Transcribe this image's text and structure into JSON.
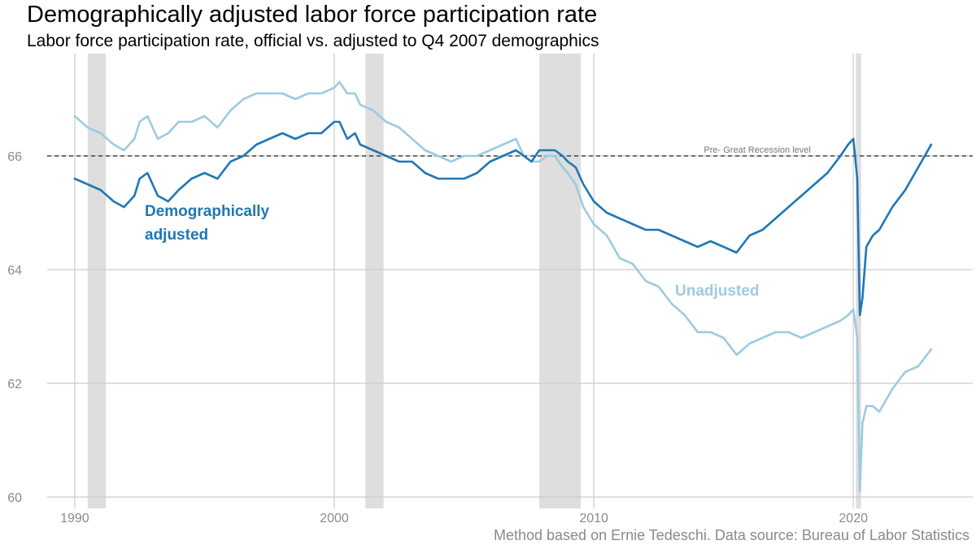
{
  "title": "Demographically adjusted labor force participation rate",
  "subtitle": "Labor force participation rate, official vs. adjusted to Q4 2007 demographics",
  "caption": "Method based on Ernie Tedeschi. Data source: Bureau of Labor Statistics",
  "colors": {
    "adjusted": "#1f77b4",
    "unadjusted": "#9ecae1",
    "recession": "#dedede",
    "grid": "#cccccc",
    "reference": "#222222"
  },
  "chart_data": {
    "type": "line",
    "title": "Demographically adjusted labor force participation rate",
    "subtitle": "Labor force participation rate, official vs. adjusted to Q4 2007 demographics",
    "xlabel": "",
    "ylabel": "",
    "xlim": [
      1989.0,
      2024.6
    ],
    "ylim": [
      59.8,
      67.8
    ],
    "x_ticks": [
      1990,
      2000,
      2010,
      2020
    ],
    "y_ticks": [
      60,
      62,
      64,
      66
    ],
    "grid": true,
    "legend": "direct labels",
    "recessions": [
      [
        1990.5,
        1991.2
      ],
      [
        2001.2,
        2001.9
      ],
      [
        2007.9,
        2009.5
      ],
      [
        2020.1,
        2020.3
      ]
    ],
    "reference_line": {
      "y": 66.0,
      "label": "Pre- Great Recession level"
    },
    "series": [
      {
        "name": "Demographically adjusted",
        "label_lines": [
          "Demographically",
          "adjusted"
        ],
        "color": "#1f77b4",
        "x": [
          1990.0,
          1990.5,
          1991.0,
          1991.5,
          1991.9,
          1992.3,
          1992.5,
          1992.8,
          1993.2,
          1993.6,
          1994.0,
          1994.5,
          1995.0,
          1995.5,
          1996.0,
          1996.5,
          1997.0,
          1997.5,
          1998.0,
          1998.5,
          1999.0,
          1999.5,
          2000.0,
          2000.2,
          2000.5,
          2000.8,
          2001.0,
          2001.5,
          2002.0,
          2002.5,
          2003.0,
          2003.5,
          2004.0,
          2004.5,
          2005.0,
          2005.5,
          2006.0,
          2006.5,
          2007.0,
          2007.3,
          2007.6,
          2007.9,
          2008.2,
          2008.5,
          2008.8,
          2009.0,
          2009.3,
          2009.6,
          2010.0,
          2010.5,
          2011.0,
          2011.5,
          2012.0,
          2012.5,
          2013.0,
          2013.5,
          2014.0,
          2014.5,
          2015.0,
          2015.5,
          2016.0,
          2016.5,
          2017.0,
          2017.5,
          2018.0,
          2018.5,
          2019.0,
          2019.5,
          2019.8,
          2020.0,
          2020.15,
          2020.25,
          2020.35,
          2020.5,
          2020.75,
          2021.0,
          2021.5,
          2022.0,
          2022.5,
          2023.0
        ],
        "values": [
          65.6,
          65.5,
          65.4,
          65.2,
          65.1,
          65.3,
          65.6,
          65.7,
          65.3,
          65.2,
          65.4,
          65.6,
          65.7,
          65.6,
          65.9,
          66.0,
          66.2,
          66.3,
          66.4,
          66.3,
          66.4,
          66.4,
          66.6,
          66.6,
          66.3,
          66.4,
          66.2,
          66.1,
          66.0,
          65.9,
          65.9,
          65.7,
          65.6,
          65.6,
          65.6,
          65.7,
          65.9,
          66.0,
          66.1,
          66.0,
          65.9,
          66.1,
          66.1,
          66.1,
          66.0,
          65.9,
          65.8,
          65.5,
          65.2,
          65.0,
          64.9,
          64.8,
          64.7,
          64.7,
          64.6,
          64.5,
          64.4,
          64.5,
          64.4,
          64.3,
          64.6,
          64.7,
          64.9,
          65.1,
          65.3,
          65.5,
          65.7,
          66.0,
          66.2,
          66.3,
          65.6,
          63.2,
          63.5,
          64.4,
          64.6,
          64.7,
          65.1,
          65.4,
          65.8,
          66.2
        ]
      },
      {
        "name": "Unadjusted",
        "label_lines": [
          "Unadjusted"
        ],
        "color": "#9ecae1",
        "x": [
          1990.0,
          1990.5,
          1991.0,
          1991.5,
          1991.9,
          1992.3,
          1992.5,
          1992.8,
          1993.2,
          1993.6,
          1994.0,
          1994.5,
          1995.0,
          1995.5,
          1996.0,
          1996.5,
          1997.0,
          1997.5,
          1998.0,
          1998.5,
          1999.0,
          1999.5,
          2000.0,
          2000.2,
          2000.5,
          2000.8,
          2001.0,
          2001.5,
          2002.0,
          2002.5,
          2003.0,
          2003.5,
          2004.0,
          2004.5,
          2005.0,
          2005.5,
          2006.0,
          2006.5,
          2007.0,
          2007.3,
          2007.6,
          2007.9,
          2008.2,
          2008.5,
          2008.8,
          2009.0,
          2009.3,
          2009.6,
          2010.0,
          2010.5,
          2011.0,
          2011.5,
          2012.0,
          2012.5,
          2013.0,
          2013.5,
          2014.0,
          2014.5,
          2015.0,
          2015.5,
          2016.0,
          2016.5,
          2017.0,
          2017.5,
          2018.0,
          2018.5,
          2019.0,
          2019.5,
          2019.8,
          2020.0,
          2020.15,
          2020.25,
          2020.35,
          2020.5,
          2020.75,
          2021.0,
          2021.5,
          2022.0,
          2022.5,
          2023.0
        ],
        "values": [
          66.7,
          66.5,
          66.4,
          66.2,
          66.1,
          66.3,
          66.6,
          66.7,
          66.3,
          66.4,
          66.6,
          66.6,
          66.7,
          66.5,
          66.8,
          67.0,
          67.1,
          67.1,
          67.1,
          67.0,
          67.1,
          67.1,
          67.2,
          67.3,
          67.1,
          67.1,
          66.9,
          66.8,
          66.6,
          66.5,
          66.3,
          66.1,
          66.0,
          65.9,
          66.0,
          66.0,
          66.1,
          66.2,
          66.3,
          66.0,
          65.9,
          65.9,
          66.0,
          66.0,
          65.8,
          65.7,
          65.5,
          65.1,
          64.8,
          64.6,
          64.2,
          64.1,
          63.8,
          63.7,
          63.4,
          63.2,
          62.9,
          62.9,
          62.8,
          62.5,
          62.7,
          62.8,
          62.9,
          62.9,
          62.8,
          62.9,
          63.0,
          63.1,
          63.2,
          63.3,
          62.8,
          60.1,
          61.3,
          61.6,
          61.6,
          61.5,
          61.9,
          62.2,
          62.3,
          62.6
        ]
      }
    ]
  }
}
